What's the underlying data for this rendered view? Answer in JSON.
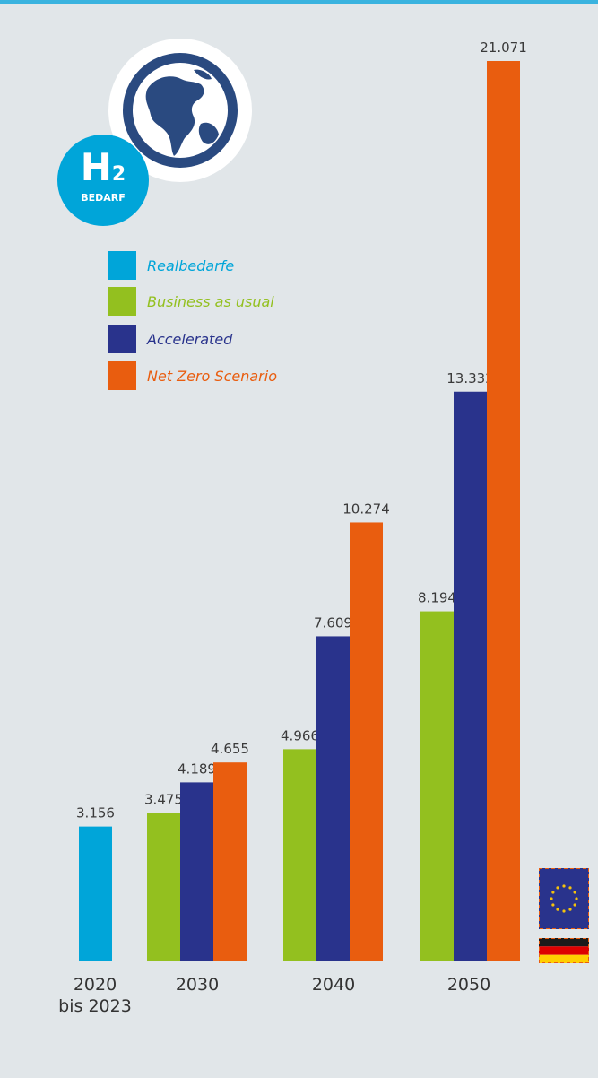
{
  "colors": {
    "background": "#e1e6e9",
    "top_line": "#3ab3df",
    "realbedarfe": "#00a5d9",
    "business_as_usual": "#93c01f",
    "accelerated": "#29338c",
    "net_zero": "#e95d0f",
    "badge": "#00a5d9",
    "globe": "#2a4a80"
  },
  "badge": {
    "h2_main": "H",
    "h2_sub": "2",
    "label": "BEDARF"
  },
  "icons": {
    "globe": "globe-icon",
    "eu_flag": "eu-flag-icon",
    "de_flag": "germany-flag-icon"
  },
  "chart_data": {
    "type": "bar",
    "title": "",
    "xlabel": "",
    "ylabel": "",
    "ylim": [
      0,
      21071
    ],
    "grid": false,
    "legend_position": "top-left",
    "categories": [
      {
        "lines": [
          "2020",
          "bis 2023"
        ]
      },
      {
        "lines": [
          "2030"
        ]
      },
      {
        "lines": [
          "2040"
        ]
      },
      {
        "lines": [
          "2050"
        ]
      }
    ],
    "series": [
      {
        "name": "Realbedarfe",
        "values": [
          3156,
          null,
          null,
          null
        ],
        "labels": [
          "3.156",
          null,
          null,
          null
        ]
      },
      {
        "name": "Business as usual",
        "values": [
          null,
          3475,
          4966,
          8194
        ],
        "labels": [
          null,
          "3.475",
          "4.966",
          "8.194"
        ]
      },
      {
        "name": "Accelerated",
        "values": [
          null,
          4189,
          7609,
          13332
        ],
        "labels": [
          null,
          "4.189",
          "7.609",
          "13.332"
        ]
      },
      {
        "name": "Net Zero Scenario",
        "values": [
          null,
          4655,
          10274,
          21071
        ],
        "labels": [
          null,
          "4.655",
          "10.274",
          "21.071"
        ]
      }
    ]
  }
}
